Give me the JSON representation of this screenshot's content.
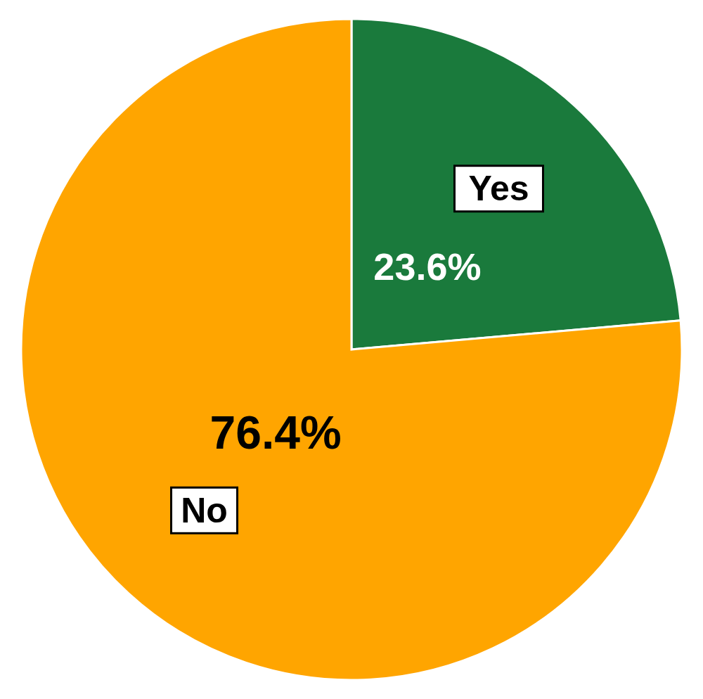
{
  "chart_data": {
    "type": "pie",
    "categories": [
      "Yes",
      "No"
    ],
    "values": [
      23.6,
      76.4
    ],
    "value_labels": [
      "23.6%",
      "76.4%"
    ],
    "colors": [
      "#1a7a3c",
      "#ffa500"
    ],
    "data_labels": true
  }
}
